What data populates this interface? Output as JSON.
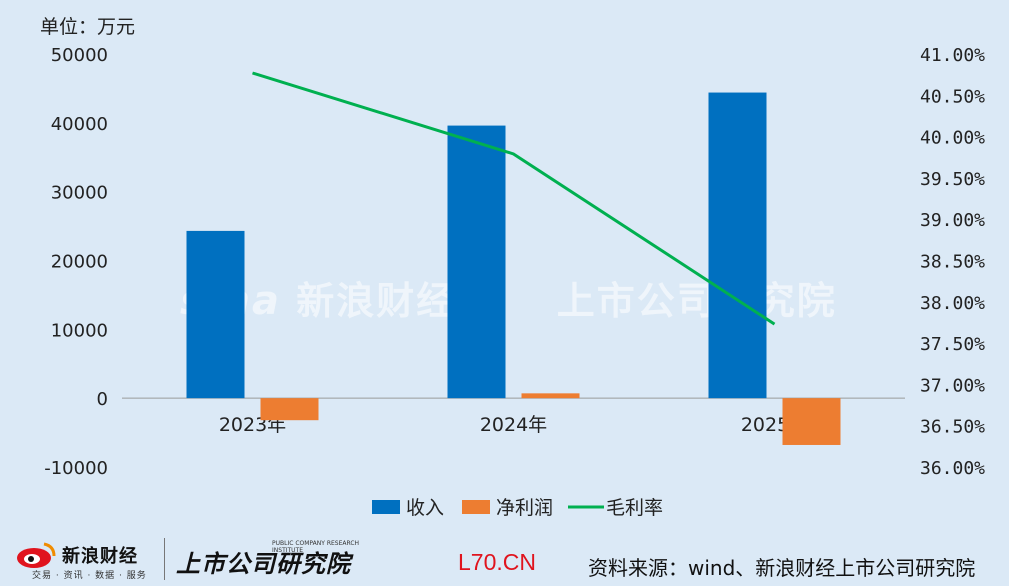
{
  "unit_label": "单位：万元",
  "chart_data": {
    "type": "bar",
    "categories": [
      "2023年",
      "2024年",
      "2025年"
    ],
    "series": [
      {
        "name": "收入",
        "type": "bar",
        "axis": "left",
        "color": "#0070c0",
        "values": [
          24300,
          39600,
          44400
        ]
      },
      {
        "name": "净利润",
        "type": "bar",
        "axis": "left",
        "color": "#ed7d31",
        "values": [
          -3200,
          700,
          -6800
        ]
      },
      {
        "name": "毛利率",
        "type": "line",
        "axis": "right",
        "color": "#00b050",
        "values": [
          40.77,
          39.79,
          37.73
        ]
      }
    ],
    "y_left": {
      "min": -10000,
      "max": 50000,
      "ticks": [
        -10000,
        0,
        10000,
        20000,
        30000,
        40000,
        50000
      ]
    },
    "y_right": {
      "min": 36.0,
      "max": 41.0,
      "ticks": [
        36.0,
        36.5,
        37.0,
        37.5,
        38.0,
        38.5,
        39.0,
        39.5,
        40.0,
        40.5,
        41.0
      ],
      "tick_labels": [
        "36.00%",
        "36.50%",
        "37.00%",
        "37.50%",
        "38.00%",
        "38.50%",
        "39.00%",
        "39.50%",
        "40.00%",
        "40.50%",
        "41.00%"
      ]
    },
    "grid": false,
    "legend_position": "bottom"
  },
  "watermark": {
    "brand": "sina",
    "brand_cn": "新浪财经",
    "institute": "上市公司研究院"
  },
  "footer": {
    "sina_logo_text": "新浪财经",
    "sina_logo_sub": "交易 · 资讯 · 数据 · 服务",
    "institute_logo_text": "上市公司研究院",
    "institute_logo_sub": "PUBLIC COMPANY RESEARCH INSTITUTE",
    "site": "L70.CN",
    "source": "资料来源：wind、新浪财经上市公司研究院"
  }
}
